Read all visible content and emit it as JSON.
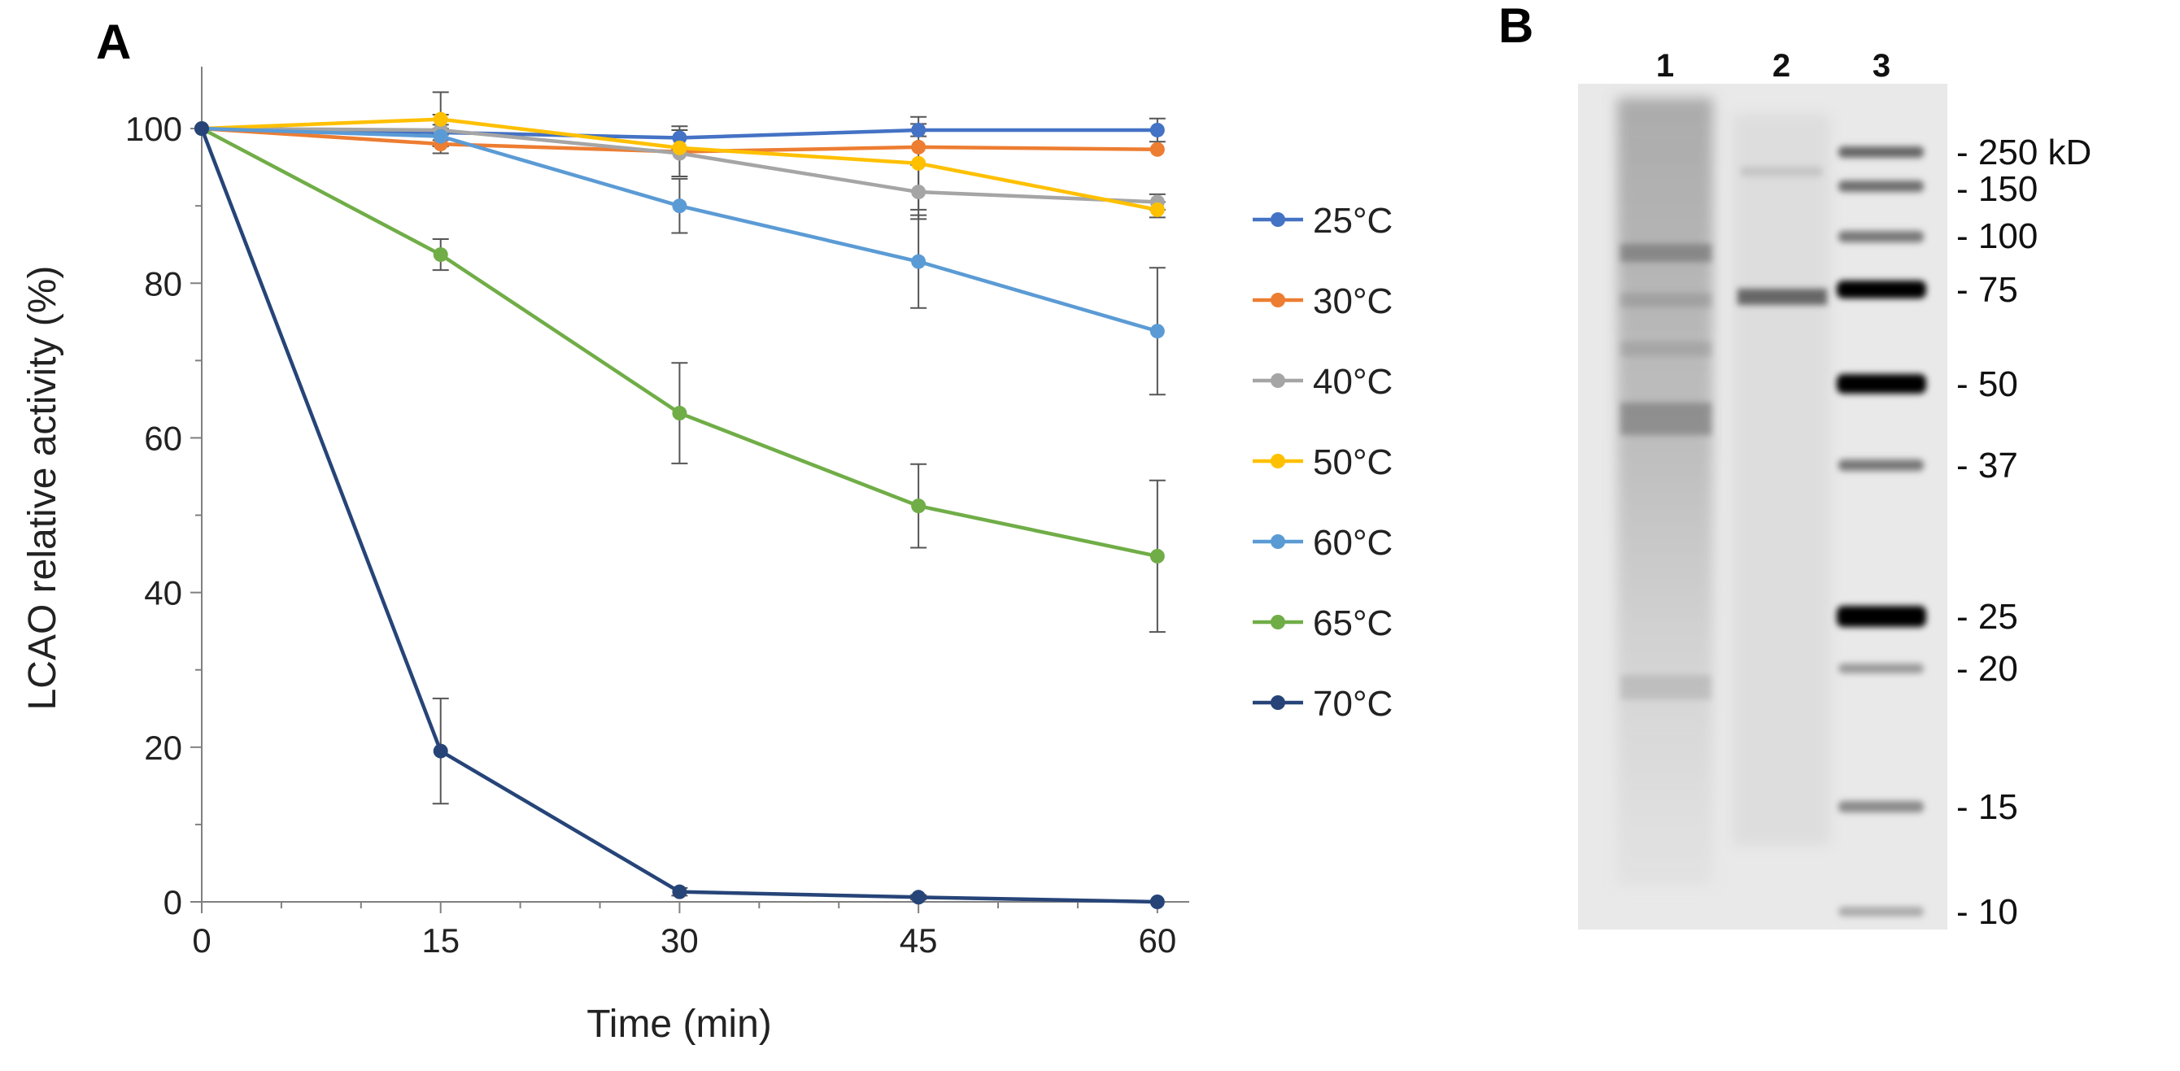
{
  "chart_data": {
    "type": "line",
    "panel_label": "A",
    "xlabel": "Time (min)",
    "ylabel": "LCAO relative activity (%)",
    "x": [
      0,
      15,
      30,
      45,
      60
    ],
    "xlim": [
      0,
      62
    ],
    "ylim": [
      0,
      108
    ],
    "xticks": [
      "0",
      "15",
      "30",
      "45",
      "60"
    ],
    "yticks": [
      "0",
      "20",
      "40",
      "60",
      "80",
      "100"
    ],
    "grid": false,
    "legend_position": "right",
    "series": [
      {
        "name": "25°C",
        "color": "#4472C4",
        "values": [
          100,
          99.5,
          98.8,
          99.8,
          99.8
        ],
        "errors": [
          0,
          1.0,
          1.5,
          0.8,
          1.5
        ]
      },
      {
        "name": "30°C",
        "color": "#ED7D31",
        "values": [
          100,
          98.0,
          97.0,
          97.6,
          97.3
        ],
        "errors": [
          0,
          1.2,
          0,
          0,
          0
        ]
      },
      {
        "name": "40°C",
        "color": "#A5A5A5",
        "values": [
          100,
          99.8,
          96.8,
          91.8,
          90.5
        ],
        "errors": [
          0,
          2.0,
          3.0,
          3.5,
          1.0
        ]
      },
      {
        "name": "50°C",
        "color": "#FFC000",
        "values": [
          100,
          101.2,
          97.5,
          95.5,
          89.5
        ],
        "errors": [
          0,
          3.5,
          0,
          6.0,
          1.0
        ]
      },
      {
        "name": "60°C",
        "color": "#5B9BD5",
        "values": [
          100,
          99.0,
          90.0,
          82.8,
          73.8
        ],
        "errors": [
          0,
          1.0,
          3.5,
          6.0,
          8.2
        ]
      },
      {
        "name": "65°C",
        "color": "#70AD47",
        "values": [
          100,
          83.7,
          63.2,
          51.2,
          44.7
        ],
        "errors": [
          0,
          2.0,
          6.5,
          5.4,
          9.8
        ]
      },
      {
        "name": "70°C",
        "color": "#264478",
        "values": [
          100,
          19.5,
          1.3,
          0.6,
          0.0
        ],
        "errors": [
          0,
          6.8,
          0.5,
          0.3,
          0
        ]
      }
    ]
  },
  "gel": {
    "panel_label": "B",
    "lanes": [
      "1",
      "2",
      "3"
    ],
    "markers": [
      "- 250 kD",
      "- 150",
      "- 100",
      "- 75",
      "- 50",
      "- 37",
      "- 25",
      "- 20",
      "- 15",
      "- 10"
    ]
  }
}
